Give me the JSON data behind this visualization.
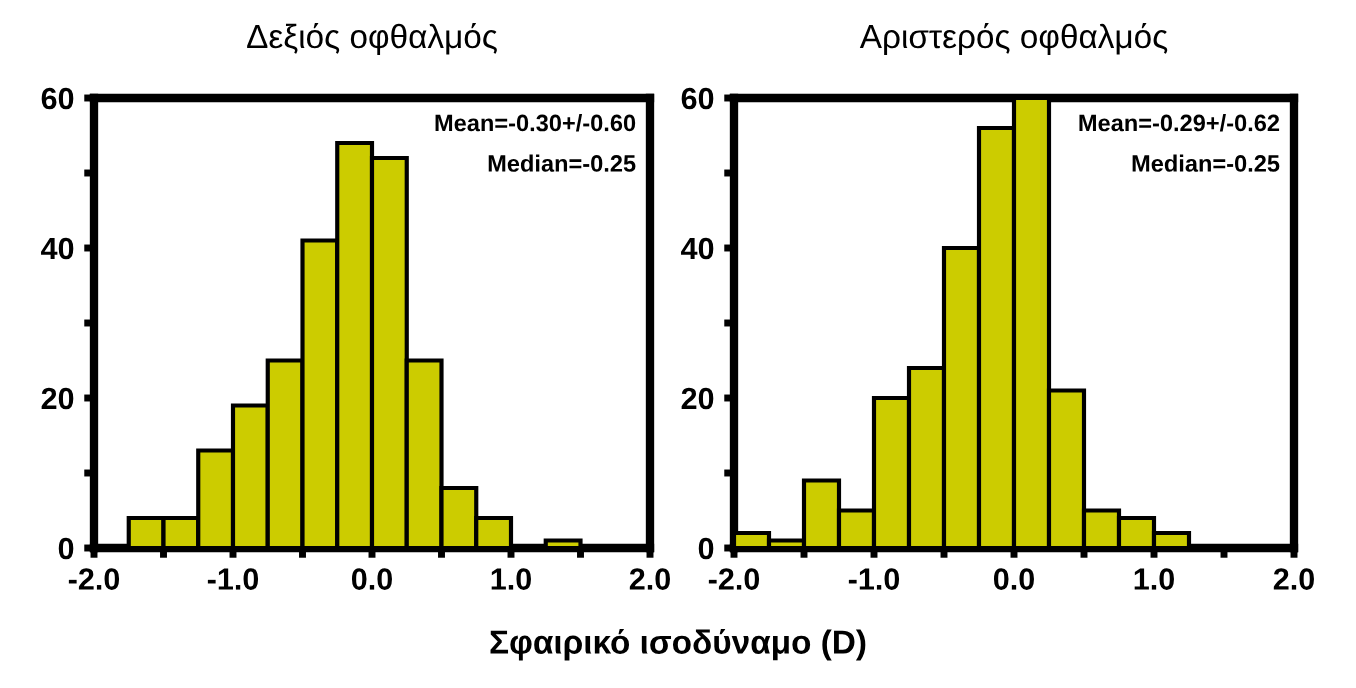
{
  "chart_data": [
    {
      "type": "histogram",
      "title": "Δεξιός οφθαλμός",
      "xlabel": "Σφαιρικό ισοδύναμο (D)",
      "color": "#cccc00",
      "bins": [
        -1.75,
        -1.5,
        -1.25,
        -1.0,
        -0.75,
        -0.5,
        -0.25,
        0.0,
        0.25,
        0.5,
        0.75,
        1.0,
        1.25,
        1.5
      ],
      "values": [
        4,
        4,
        13,
        19,
        25,
        41,
        54,
        52,
        25,
        8,
        4,
        0,
        1
      ],
      "xlim": [
        -2.0,
        2.0
      ],
      "ylim": [
        0,
        60
      ],
      "xticks": [
        {
          "value": -2.0,
          "label": "-2.0"
        },
        {
          "value": -1.5,
          "label": null
        },
        {
          "value": -1.0,
          "label": "-1.0"
        },
        {
          "value": -0.5,
          "label": null
        },
        {
          "value": 0.0,
          "label": "0.0"
        },
        {
          "value": 0.5,
          "label": null
        },
        {
          "value": 1.0,
          "label": "1.0"
        },
        {
          "value": 1.5,
          "label": null
        },
        {
          "value": 2.0,
          "label": "2.0"
        }
      ],
      "yticks": [
        0,
        {
          "value": 10,
          "label": null
        },
        20,
        {
          "value": 30,
          "label": null
        },
        40,
        {
          "value": 50,
          "label": null
        },
        60
      ],
      "annotations": [
        "Mean=-0.30+/-0.60",
        "Median=-0.25"
      ]
    },
    {
      "type": "histogram",
      "title": "Αριστερός οφθαλμός",
      "color": "#cccc00",
      "bins": [
        -2.0,
        -1.75,
        -1.5,
        -1.25,
        -1.0,
        -0.75,
        -0.5,
        -0.25,
        0.0,
        0.25,
        0.5,
        0.75,
        1.0,
        1.25
      ],
      "values": [
        2,
        1,
        9,
        5,
        20,
        24,
        40,
        56,
        60,
        21,
        5,
        4,
        2
      ],
      "xlim": [
        -2.0,
        2.0
      ],
      "ylim": [
        0,
        60
      ],
      "xticks": [
        {
          "value": -2.0,
          "label": "-2.0"
        },
        {
          "value": -1.5,
          "label": null
        },
        {
          "value": -1.0,
          "label": "-1.0"
        },
        {
          "value": -0.5,
          "label": null
        },
        {
          "value": 0.0,
          "label": "0.0"
        },
        {
          "value": 0.5,
          "label": null
        },
        {
          "value": 1.0,
          "label": "1.0"
        },
        {
          "value": 1.5,
          "label": null
        },
        {
          "value": 2.0,
          "label": "2.0"
        }
      ],
      "yticks": [
        0,
        {
          "value": 10,
          "label": null
        },
        20,
        {
          "value": 30,
          "label": null
        },
        40,
        {
          "value": 50,
          "label": null
        },
        60
      ],
      "annotations": [
        "Mean=-0.29+/-0.62",
        "Median=-0.25"
      ]
    }
  ]
}
